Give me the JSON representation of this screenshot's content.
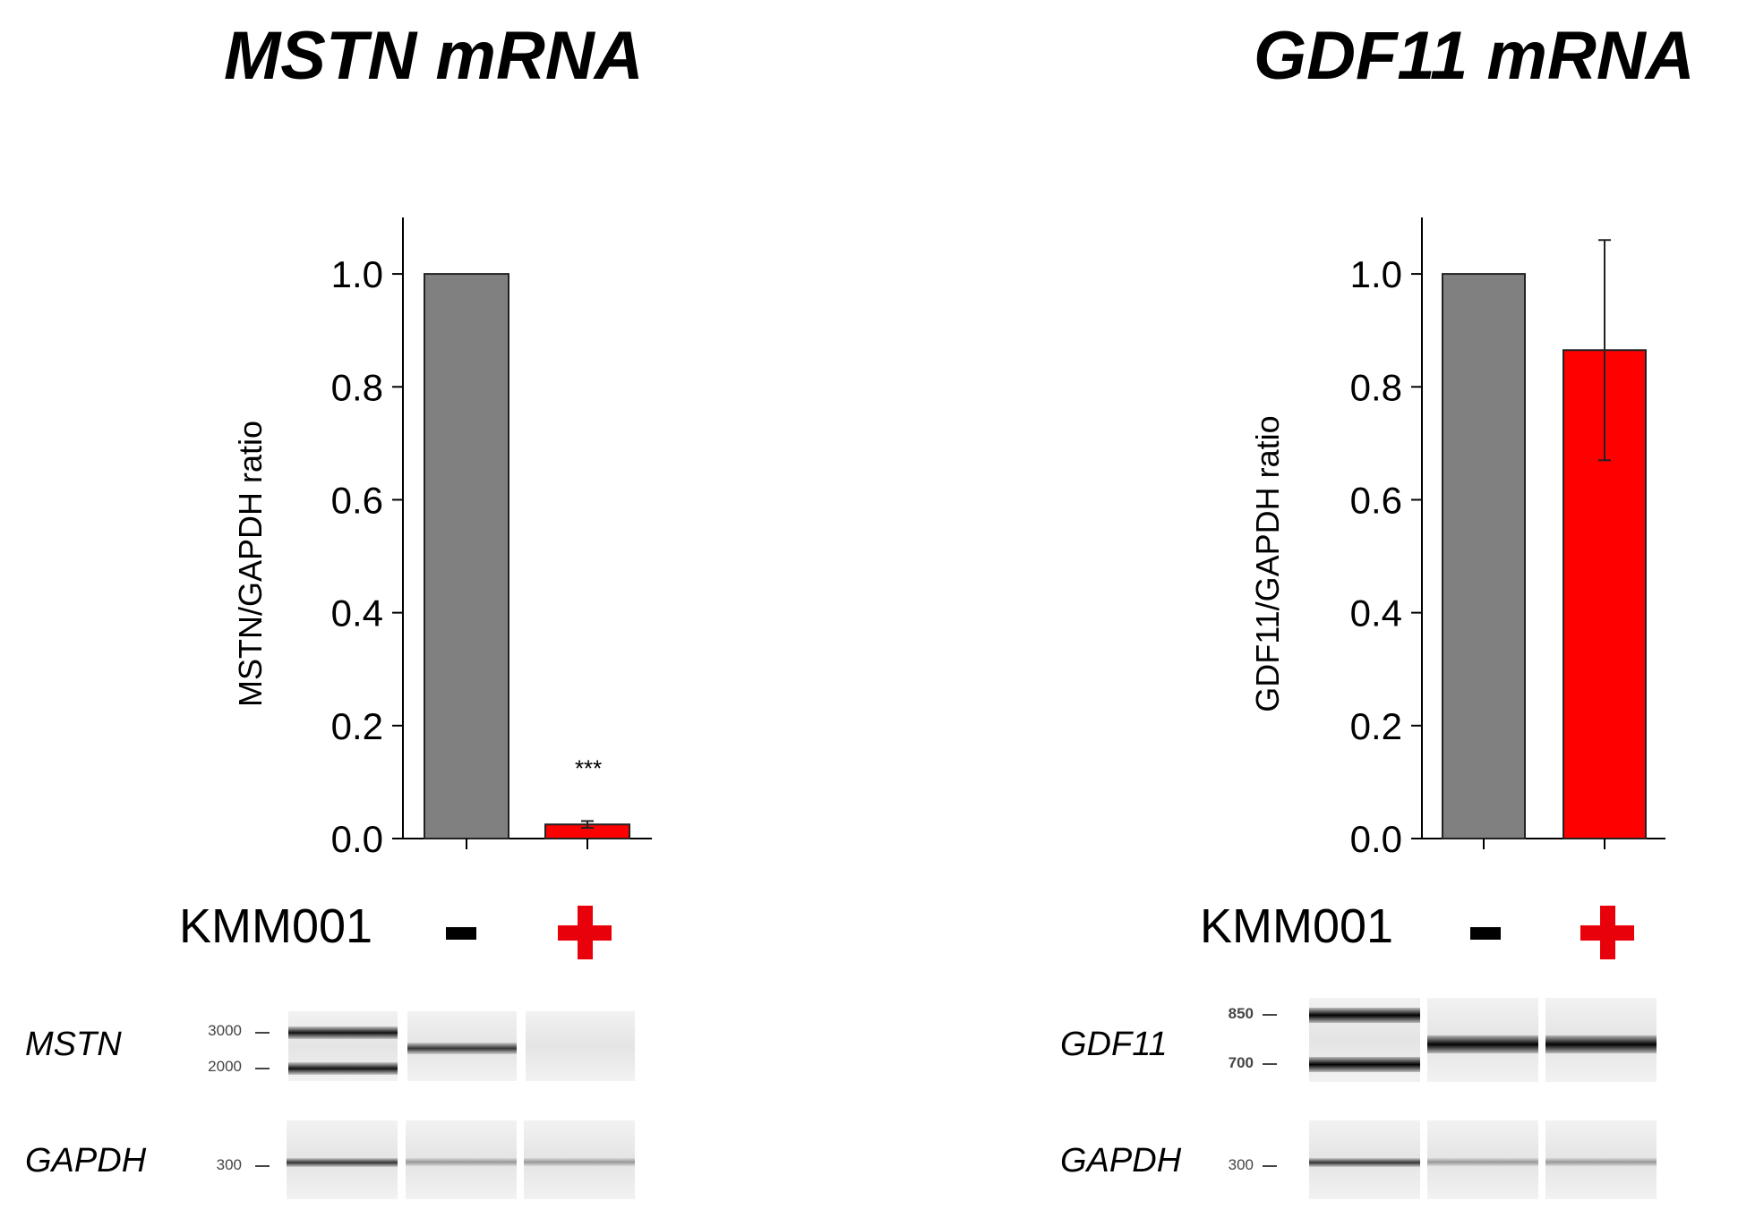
{
  "chart_data": [
    {
      "type": "bar",
      "title": "MSTN mRNA",
      "ylabel": "MSTN/GAPDH ratio",
      "categories": [
        "-",
        "+"
      ],
      "values": [
        1.0,
        0.025
      ],
      "error": [
        0,
        0.006
      ],
      "ylim": [
        0,
        1.1
      ],
      "yticks": [
        "0.0",
        "0.2",
        "0.4",
        "0.6",
        "0.8",
        "1.0"
      ],
      "bar_colors": [
        "#808080",
        "#ff0000"
      ],
      "annotations": [
        {
          "category": "+",
          "text": "***"
        }
      ],
      "grid": false
    },
    {
      "type": "bar",
      "title": "GDF11 mRNA",
      "ylabel": "GDF11/GAPDH ratio",
      "categories": [
        "-",
        "+"
      ],
      "values": [
        1.0,
        0.865
      ],
      "error": [
        0,
        0.195
      ],
      "ylim": [
        0,
        1.1
      ],
      "yticks": [
        "0.0",
        "0.2",
        "0.4",
        "0.6",
        "0.8",
        "1.0"
      ],
      "bar_colors": [
        "#808080",
        "#ff0000"
      ],
      "annotations": [],
      "grid": false
    }
  ],
  "treatment": {
    "label": "KMM001",
    "minus_color": "#000000",
    "plus_color": "#e8000b"
  },
  "gels": [
    {
      "target_label": "MSTN",
      "target_markers": [
        "3000",
        "2000"
      ],
      "control_label": "GAPDH",
      "control_markers": [
        "300"
      ]
    },
    {
      "target_label": "GDF11",
      "target_markers": [
        "850",
        "700"
      ],
      "control_label": "GAPDH",
      "control_markers": [
        "300"
      ]
    }
  ]
}
